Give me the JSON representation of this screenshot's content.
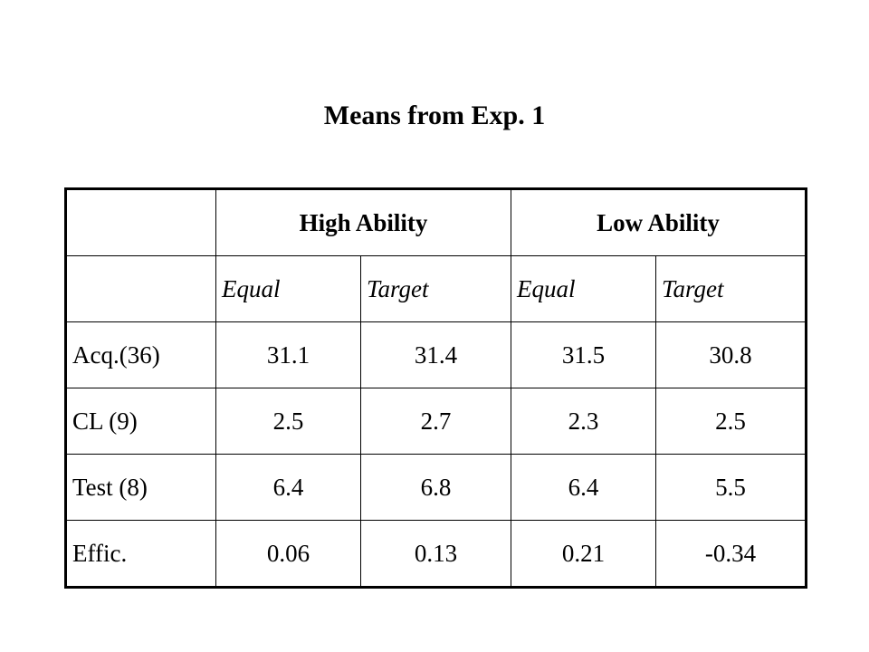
{
  "title": "Means from Exp. 1",
  "table": {
    "groups": [
      "High Ability",
      "Low Ability"
    ],
    "subheaders": [
      "Equal",
      "Target",
      "Equal",
      "Target"
    ],
    "rows": [
      {
        "label": "Acq.(36)",
        "values": [
          "31.1",
          "31.4",
          "31.5",
          "30.8"
        ]
      },
      {
        "label": "CL (9)",
        "values": [
          "2.5",
          "2.7",
          "2.3",
          "2.5"
        ]
      },
      {
        "label": "Test (8)",
        "values": [
          "6.4",
          "6.8",
          "6.4",
          "5.5"
        ]
      },
      {
        "label": "Effic.",
        "values": [
          "0.06",
          "0.13",
          "0.21",
          "-0.34"
        ]
      }
    ]
  }
}
